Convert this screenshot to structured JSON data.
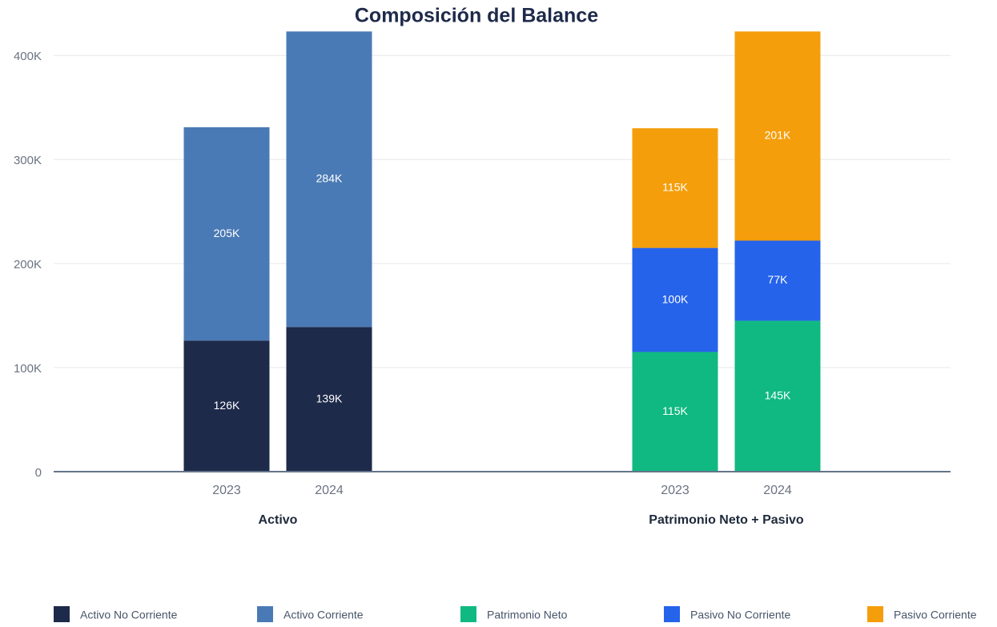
{
  "chart_data": {
    "type": "stacked_bar",
    "title": "Composición del Balance",
    "categories": [
      "2023",
      "2024",
      "2023",
      "2024"
    ],
    "groups": [
      "Activo",
      "Patrimonio Neto + Pasivo"
    ],
    "series": [
      {
        "name": "Activo No Corriente",
        "color": "#1e2a4a",
        "values": [
          126000,
          139000,
          null,
          null
        ],
        "value_labels": [
          "126K",
          "139K",
          null,
          null
        ]
      },
      {
        "name": "Activo Corriente",
        "color": "#4a7ab5",
        "values": [
          205000,
          284000,
          null,
          null
        ],
        "value_labels": [
          "205K",
          "284K",
          null,
          null
        ]
      },
      {
        "name": "Patrimonio Neto",
        "color": "#10b981",
        "values": [
          null,
          null,
          115000,
          145000
        ],
        "value_labels": [
          null,
          null,
          "115K",
          "145K"
        ]
      },
      {
        "name": "Pasivo No Corriente",
        "color": "#2563eb",
        "values": [
          null,
          null,
          100000,
          77000
        ],
        "value_labels": [
          null,
          null,
          "100K",
          "77K"
        ]
      },
      {
        "name": "Pasivo Corriente",
        "color": "#f59e0b",
        "values": [
          null,
          null,
          115000,
          201000
        ],
        "value_labels": [
          null,
          null,
          "115K",
          "201K"
        ]
      }
    ],
    "ylim": [
      0,
      424000
    ],
    "yticks": [
      0,
      {
        "value": 100000,
        "label": "100K"
      },
      {
        "value": 200000,
        "label": "200K"
      },
      {
        "value": 300000,
        "label": "300K"
      },
      {
        "value": 400000,
        "label": "400K"
      }
    ],
    "grid": true,
    "legend": "bottom"
  }
}
